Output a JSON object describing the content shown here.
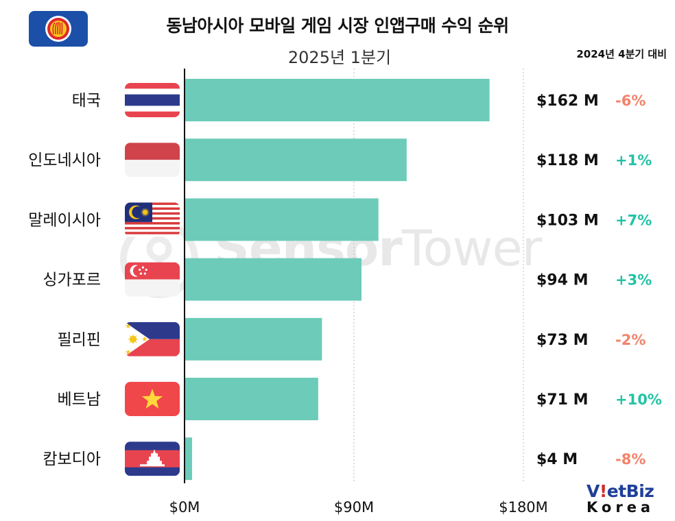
{
  "header": {
    "title": "동남아시아 모바일 게임 시장 인앱구매 수익 순위",
    "subtitle": "2025년 1분기",
    "compare_note": "2024년 4분기 대비"
  },
  "watermark": {
    "name_bold": "Sensor",
    "name_light": "Tower"
  },
  "brand": {
    "part1": "V",
    "part2": "!",
    "part3": "etBiz",
    "line2": "Korea"
  },
  "colors": {
    "bar": "#6ccbb9",
    "positive": "#22c3a6",
    "negative": "#f2836b",
    "grid": "#bbbbbb",
    "axis": "#111111"
  },
  "chart_data": {
    "type": "bar",
    "orientation": "horizontal",
    "title": "동남아시아 모바일 게임 시장 인앱구매 수익 순위",
    "subtitle": "2025년 1분기",
    "categories": [
      "태국",
      "인도네시아",
      "말레이시아",
      "싱가포르",
      "필리핀",
      "베트남",
      "캄보디아"
    ],
    "values": [
      162,
      118,
      103,
      94,
      73,
      71,
      4
    ],
    "value_labels": [
      "$162 M",
      "$118 M",
      "$103 M",
      "$94 M",
      "$73 M",
      "$71 M",
      "$4 M"
    ],
    "unit": "$M",
    "change_header": "2024년 4분기 대비",
    "changes": [
      "-6%",
      "+1%",
      "+7%",
      "+3%",
      "-2%",
      "+10%",
      "-8%"
    ],
    "flags": [
      "thailand-flag",
      "indonesia-flag",
      "malaysia-flag",
      "singapore-flag",
      "philippines-flag",
      "vietnam-flag",
      "cambodia-flag"
    ],
    "xlim": [
      0,
      180
    ],
    "xticks": [
      0,
      90,
      180
    ],
    "xtick_labels": [
      "$0M",
      "$90M",
      "$180M"
    ],
    "grid": true,
    "legend": "none"
  }
}
